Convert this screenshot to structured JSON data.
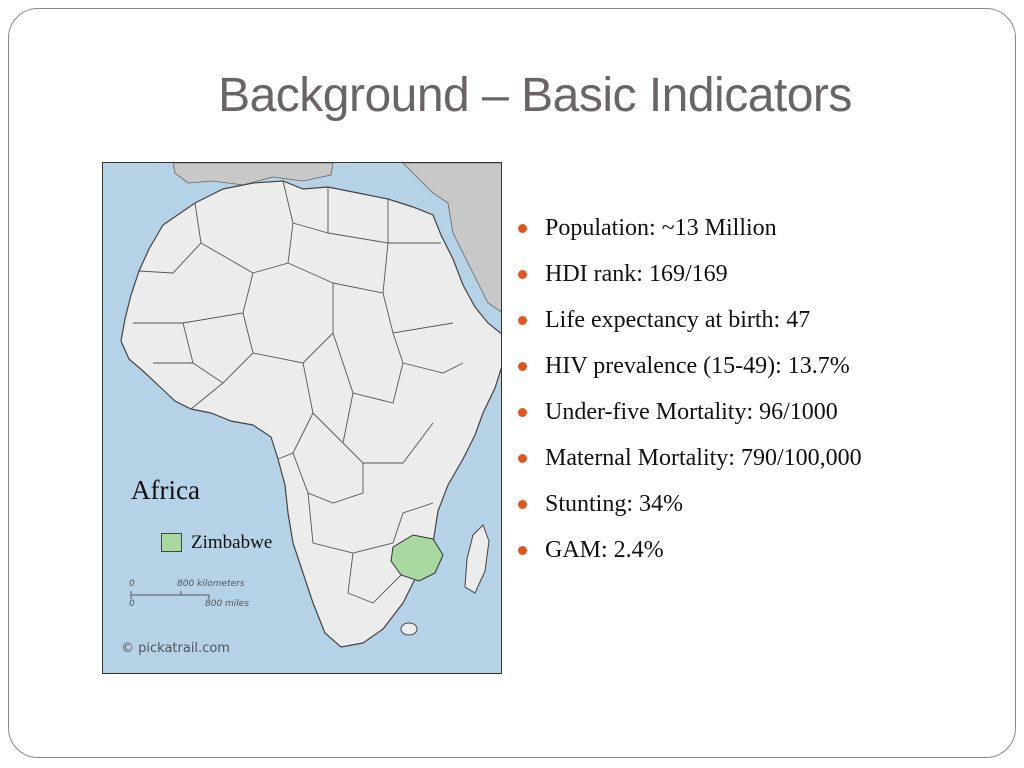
{
  "slide": {
    "title": "Background – Basic Indicators"
  },
  "map": {
    "title": "Africa",
    "legend_label": "Zimbabwe",
    "legend_color": "#a9d9a1",
    "water_color": "#b5d2e6",
    "land_color": "#ececec",
    "scale": {
      "km_zero": "0",
      "km_label": "800 kilometers",
      "mi_zero": "0",
      "mi_label": "800 miles"
    },
    "copyright": "© pickatrail.com"
  },
  "indicators": [
    "Population: ~13 Million",
    "HDI rank: 169/169",
    "Life expectancy at birth: 47",
    "HIV prevalence (15-49): 13.7%",
    "Under-five Mortality: 96/1000",
    "Maternal Mortality: 790/100,000",
    "Stunting: 34%",
    "GAM: 2.4%"
  ],
  "accent_color": "#e0561b"
}
